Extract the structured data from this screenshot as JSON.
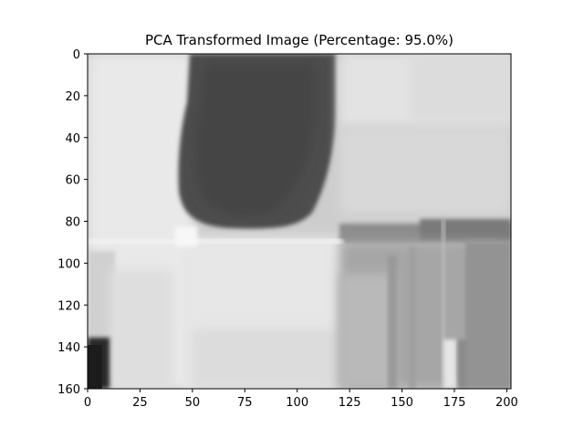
{
  "figure": {
    "title": "PCA Transformed Image (Percentage: 95.0%)"
  },
  "image_data": {
    "type": "grayscale-image",
    "width": 202,
    "height": 160,
    "x_ticks": [
      0,
      25,
      50,
      75,
      100,
      125,
      150,
      175,
      200
    ],
    "y_ticks": [
      0,
      20,
      40,
      60,
      80,
      100,
      120,
      140,
      160
    ],
    "x_tick_labels": [
      "0",
      "25",
      "50",
      "75",
      "100",
      "125",
      "150",
      "175",
      "200"
    ],
    "y_tick_labels": [
      "0",
      "20",
      "40",
      "60",
      "80",
      "100",
      "120",
      "140",
      "160"
    ],
    "background_gray": "#cfcfcf",
    "frame_color": "#000000"
  }
}
